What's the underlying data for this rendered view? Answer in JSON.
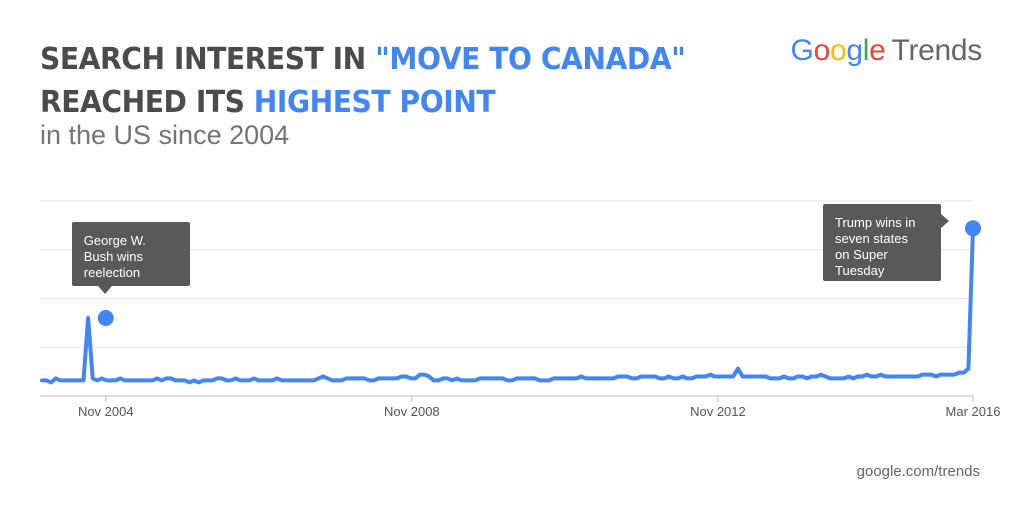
{
  "header": {
    "title_line1_prefix": "SEARCH INTEREST IN ",
    "title_line1_highlight": "\"MOVE TO CANADA\"",
    "title_line2_prefix": "REACHED ITS ",
    "title_line2_highlight": "HIGHEST POINT",
    "subtitle": "in the US since 2004"
  },
  "logo": {
    "brand_letters": [
      {
        "ch": "G",
        "color": "#4285f4"
      },
      {
        "ch": "o",
        "color": "#ea4335"
      },
      {
        "ch": "o",
        "color": "#fbbc05"
      },
      {
        "ch": "g",
        "color": "#4285f4"
      },
      {
        "ch": "l",
        "color": "#34a853"
      },
      {
        "ch": "e",
        "color": "#ea4335"
      }
    ],
    "product": "Trends"
  },
  "footer": {
    "source": "google.com/trends"
  },
  "colors": {
    "accent": "#4285f4",
    "title": "#4b4b4b",
    "callout_bg": "#595959"
  },
  "chart_data": {
    "type": "line",
    "x_start": "2004-01",
    "x_end": "2016-03",
    "ylim": [
      0,
      100
    ],
    "grid": true,
    "x_ticks": [
      {
        "label": "Nov 2004",
        "date": "2004-11"
      },
      {
        "label": "Nov 2008",
        "date": "2008-11"
      },
      {
        "label": "Nov 2012",
        "date": "2012-11"
      },
      {
        "label": "Mar 2016",
        "date": "2016-03"
      }
    ],
    "series": [
      {
        "values": [
          8,
          8,
          7,
          9,
          8,
          8,
          8,
          8,
          8,
          8,
          40,
          9,
          8,
          9,
          8,
          8,
          8,
          9,
          8,
          8,
          8,
          8,
          8,
          8,
          8,
          9,
          8,
          9,
          9,
          8,
          8,
          8,
          7,
          8,
          7,
          8,
          8,
          8,
          9,
          9,
          8,
          8,
          9,
          8,
          8,
          8,
          9,
          8,
          8,
          8,
          8,
          9,
          8,
          8,
          8,
          8,
          8,
          8,
          8,
          8,
          9,
          10,
          9,
          8,
          8,
          8,
          9,
          9,
          9,
          9,
          9,
          8,
          8,
          9,
          9,
          9,
          9,
          9,
          10,
          10,
          9,
          9,
          11,
          11,
          10,
          8,
          8,
          9,
          9,
          8,
          9,
          8,
          8,
          8,
          8,
          9,
          9,
          9,
          9,
          9,
          9,
          8,
          8,
          9,
          9,
          9,
          9,
          9,
          8,
          8,
          8,
          9,
          9,
          9,
          9,
          9,
          9,
          10,
          9,
          9,
          9,
          9,
          9,
          9,
          9,
          10,
          10,
          10,
          9,
          9,
          10,
          10,
          10,
          10,
          9,
          9,
          10,
          9,
          9,
          10,
          9,
          9,
          10,
          10,
          10,
          11,
          10,
          10,
          10,
          10,
          10,
          14,
          10,
          10,
          10,
          10,
          10,
          10,
          9,
          9,
          9,
          10,
          9,
          9,
          10,
          10,
          9,
          10,
          10,
          11,
          10,
          9,
          9,
          9,
          9,
          10,
          9,
          10,
          10,
          11,
          10,
          10,
          11,
          10,
          10,
          10,
          10,
          10,
          10,
          10,
          10,
          11,
          11,
          11,
          10,
          11,
          11,
          11,
          11,
          12,
          12,
          14,
          86
        ]
      }
    ],
    "markers": [
      {
        "date": "2004-11",
        "value": 40,
        "label_lines": [
          "George W.",
          "Bush wins",
          "reelection"
        ]
      },
      {
        "date": "2016-03",
        "value": 86,
        "label_lines": [
          "Trump wins in",
          "seven states",
          "on Super",
          "Tuesday"
        ]
      }
    ]
  }
}
